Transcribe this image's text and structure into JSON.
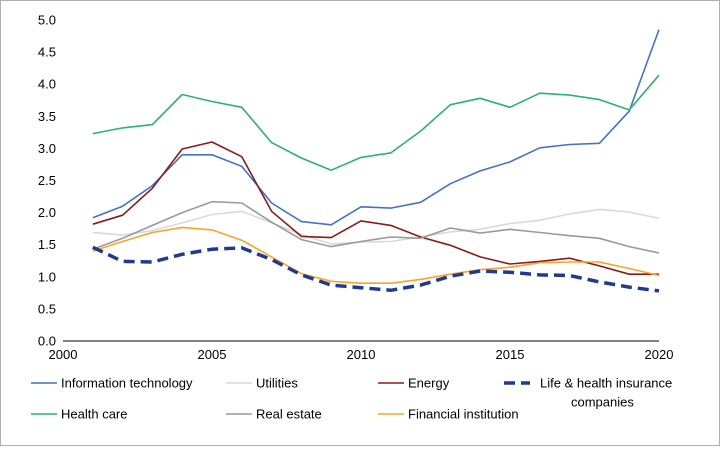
{
  "chart_data": {
    "type": "line",
    "title": "",
    "xlabel": "",
    "ylabel": "",
    "xlim": [
      2000,
      2020
    ],
    "ylim": [
      0,
      5
    ],
    "x_ticks": [
      "2000",
      "2005",
      "2010",
      "2015",
      "2020"
    ],
    "y_ticks": [
      "0.0",
      "0.5",
      "1.0",
      "1.5",
      "2.0",
      "2.5",
      "3.0",
      "3.5",
      "4.0",
      "4.5",
      "5.0"
    ],
    "grid": false,
    "legend_position": "bottom",
    "x": [
      2001,
      2002,
      2003,
      2004,
      2005,
      2006,
      2007,
      2008,
      2009,
      2010,
      2011,
      2012,
      2013,
      2014,
      2015,
      2016,
      2017,
      2018,
      2019,
      2020
    ],
    "series": [
      {
        "name": "Information technology",
        "color": "#4472c4",
        "dash": false,
        "values": [
          1.92,
          2.1,
          2.42,
          2.9,
          2.9,
          2.72,
          2.15,
          1.86,
          1.81,
          2.09,
          2.07,
          2.16,
          2.45,
          2.65,
          2.79,
          3.01,
          3.06,
          3.08,
          3.58,
          4.85
        ]
      },
      {
        "name": "Utilities",
        "color": "#d9d9d9",
        "dash": false,
        "values": [
          1.69,
          1.65,
          1.72,
          1.84,
          1.97,
          2.02,
          1.84,
          1.66,
          1.51,
          1.54,
          1.55,
          1.62,
          1.7,
          1.74,
          1.83,
          1.88,
          1.98,
          2.05,
          2.01,
          1.91
        ]
      },
      {
        "name": "Energy",
        "color": "#8b1a1a",
        "dash": false,
        "values": [
          1.82,
          1.96,
          2.38,
          2.99,
          3.1,
          2.87,
          2.02,
          1.63,
          1.61,
          1.87,
          1.8,
          1.62,
          1.49,
          1.31,
          1.2,
          1.24,
          1.29,
          1.17,
          1.04,
          1.04
        ]
      },
      {
        "name": "Life & health insurance companies",
        "legend_lines": [
          "Life & health insurance",
          "companies"
        ],
        "color": "#1f3a93",
        "dash": true,
        "values": [
          1.46,
          1.24,
          1.23,
          1.35,
          1.43,
          1.45,
          1.27,
          1.03,
          0.87,
          0.83,
          0.79,
          0.87,
          1.01,
          1.09,
          1.07,
          1.03,
          1.02,
          0.92,
          0.84,
          0.78
        ]
      },
      {
        "name": "Health care",
        "color": "#2cb36b",
        "dash": false,
        "values": [
          3.23,
          3.32,
          3.37,
          3.84,
          3.73,
          3.64,
          3.09,
          2.85,
          2.66,
          2.86,
          2.93,
          3.27,
          3.68,
          3.78,
          3.64,
          3.86,
          3.83,
          3.76,
          3.6,
          4.14
        ]
      },
      {
        "name": "Real estate",
        "color": "#9a9a9a",
        "dash": false,
        "values": [
          1.43,
          1.6,
          1.8,
          2.0,
          2.17,
          2.15,
          1.85,
          1.58,
          1.47,
          1.55,
          1.62,
          1.6,
          1.76,
          1.68,
          1.74,
          1.69,
          1.64,
          1.6,
          1.47,
          1.37
        ]
      },
      {
        "name": "Financial institution",
        "color": "#f4a62a",
        "dash": false,
        "values": [
          1.4,
          1.55,
          1.69,
          1.77,
          1.73,
          1.57,
          1.31,
          1.05,
          0.93,
          0.9,
          0.9,
          0.96,
          1.04,
          1.11,
          1.15,
          1.22,
          1.23,
          1.23,
          1.13,
          1.02
        ]
      }
    ]
  }
}
